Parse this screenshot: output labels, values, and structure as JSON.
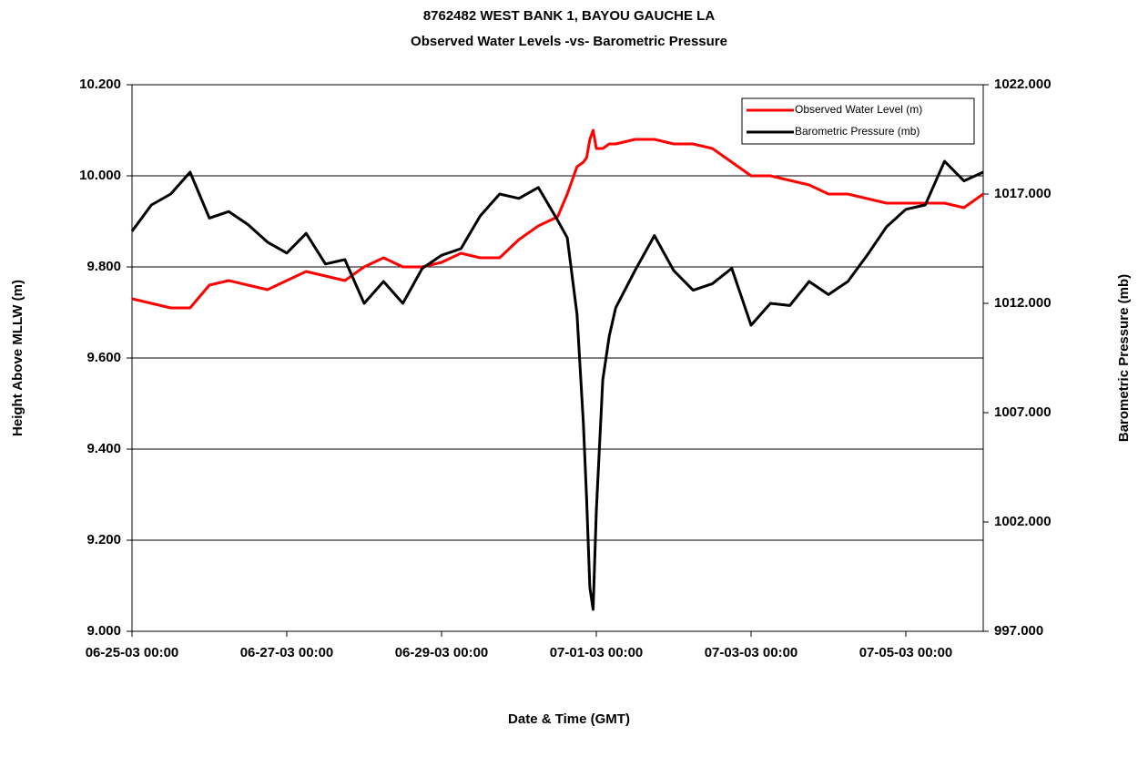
{
  "chart_data": {
    "type": "line",
    "title": "8762482  WEST BANK 1, BAYOU GAUCHE LA",
    "subtitle": "Observed Water Levels -vs- Barometric Pressure",
    "x_label": "Date & Time (GMT)",
    "y_label": "Height Above MLLW (m)",
    "y2_label": "Barometric Pressure (mb)",
    "x": [
      "06-25-03 00:00",
      "06-25-03 06:00",
      "06-25-03 12:00",
      "06-25-03 18:00",
      "06-26-03 00:00",
      "06-26-03 06:00",
      "06-26-03 12:00",
      "06-26-03 18:00",
      "06-27-03 00:00",
      "06-27-03 06:00",
      "06-27-03 12:00",
      "06-27-03 18:00",
      "06-28-03 00:00",
      "06-28-03 06:00",
      "06-28-03 12:00",
      "06-28-03 18:00",
      "06-29-03 00:00",
      "06-29-03 06:00",
      "06-29-03 12:00",
      "06-29-03 18:00",
      "06-30-03 00:00",
      "06-30-03 06:00",
      "06-30-03 12:00",
      "06-30-03 15:00",
      "06-30-03 18:00",
      "06-30-03 20:00",
      "06-30-03 21:00",
      "06-30-03 22:00",
      "06-30-03 23:00",
      "07-01-03 00:00",
      "07-01-03 02:00",
      "07-01-03 04:00",
      "07-01-03 06:00",
      "07-01-03 12:00",
      "07-01-03 18:00",
      "07-02-03 00:00",
      "07-02-03 06:00",
      "07-02-03 12:00",
      "07-02-03 18:00",
      "07-03-03 00:00",
      "07-03-03 06:00",
      "07-03-03 12:00",
      "07-03-03 18:00",
      "07-04-03 00:00",
      "07-04-03 06:00",
      "07-04-03 12:00",
      "07-04-03 18:00",
      "07-05-03 00:00",
      "07-05-03 06:00",
      "07-05-03 12:00",
      "07-05-03 18:00",
      "07-06-03 00:00"
    ],
    "series": [
      {
        "name": "Observed Water Level (m)",
        "color": "#ff0000",
        "axis": "y",
        "values": [
          9.73,
          9.72,
          9.71,
          9.71,
          9.76,
          9.77,
          9.76,
          9.75,
          9.77,
          9.79,
          9.78,
          9.77,
          9.8,
          9.82,
          9.8,
          9.8,
          9.81,
          9.83,
          9.82,
          9.82,
          9.86,
          9.89,
          9.91,
          9.96,
          10.02,
          10.03,
          10.04,
          10.08,
          10.1,
          10.06,
          10.06,
          10.07,
          10.07,
          10.08,
          10.08,
          10.07,
          10.07,
          10.06,
          10.03,
          10.0,
          10.0,
          9.99,
          9.98,
          9.96,
          9.96,
          9.95,
          9.94,
          9.94,
          9.94,
          9.94,
          9.93,
          9.96
        ]
      },
      {
        "name": "Barometric Pressure  (mb)",
        "color": "#000000",
        "axis": "y2",
        "values": [
          1015.3,
          1016.5,
          1017.0,
          1018.0,
          1015.9,
          1016.2,
          1015.6,
          1014.8,
          1014.3,
          1015.2,
          1013.8,
          1014.0,
          1012.0,
          1013.0,
          1012.0,
          1013.6,
          1014.2,
          1014.5,
          1016.0,
          1017.0,
          1016.8,
          1017.3,
          1015.8,
          1015.0,
          1011.5,
          1006.5,
          1003.0,
          999.0,
          998.0,
          1002.5,
          1008.5,
          1010.5,
          1011.8,
          1013.5,
          1015.1,
          1013.5,
          1012.6,
          1012.9,
          1013.6,
          1011.0,
          1012.0,
          1011.9,
          1013.0,
          1012.4,
          1013.0,
          1014.2,
          1015.5,
          1016.3,
          1016.5,
          1018.5,
          1017.6,
          1018.0
        ]
      }
    ],
    "xlim": [
      "06-25-03 00:00",
      "07-06-03 00:00"
    ],
    "xticks": [
      "06-25-03 00:00",
      "06-27-03 00:00",
      "06-29-03 00:00",
      "07-01-03 00:00",
      "07-03-03 00:00",
      "07-05-03 00:00"
    ],
    "ylim": [
      9.0,
      10.2
    ],
    "yticks": [
      {
        "value": 9.0,
        "label": "9.000"
      },
      {
        "value": 9.2,
        "label": "9.200"
      },
      {
        "value": 9.4,
        "label": "9.400"
      },
      {
        "value": 9.6,
        "label": "9.600"
      },
      {
        "value": 9.8,
        "label": "9.800"
      },
      {
        "value": 10.0,
        "label": "10.000"
      },
      {
        "value": 10.2,
        "label": "10.200"
      }
    ],
    "y2lim": [
      997,
      1022
    ],
    "y2ticks": [
      {
        "value": 997,
        "label": "997.000"
      },
      {
        "value": 1002,
        "label": "1002.000"
      },
      {
        "value": 1007,
        "label": "1007.000"
      },
      {
        "value": 1012,
        "label": "1012.000"
      },
      {
        "value": 1017,
        "label": "1017.000"
      },
      {
        "value": 1022,
        "label": "1022.000"
      }
    ],
    "grid": true,
    "legend": "upper right"
  }
}
